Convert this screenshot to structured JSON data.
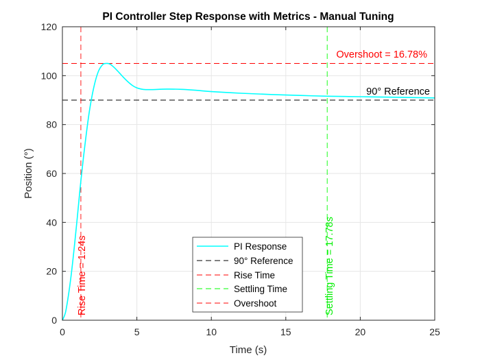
{
  "chart_data": {
    "type": "line",
    "title": "PI Controller Step Response with Metrics - Manual Tuning",
    "xlabel": "Time (s)",
    "ylabel": "Position (°)",
    "xlim": [
      0,
      25
    ],
    "ylim": [
      0,
      120
    ],
    "xticks": [
      "0",
      "5",
      "10",
      "15",
      "20",
      "25"
    ],
    "yticks": [
      "0",
      "20",
      "40",
      "60",
      "80",
      "100",
      "120"
    ],
    "grid": true,
    "legend_position": "bottom-center",
    "series": [
      {
        "name": "PI Response",
        "color": "#00ffff",
        "style": "solid",
        "x": [
          0,
          0.2,
          0.4,
          0.6,
          0.8,
          1.0,
          1.24,
          1.5,
          1.8,
          2.1,
          2.4,
          2.7,
          2.95,
          3.2,
          3.5,
          3.8,
          4.1,
          4.4,
          4.7,
          5.0,
          5.3,
          5.6,
          6.0,
          7.0,
          8.0,
          9.0,
          10.0,
          12.0,
          14.0,
          16.0,
          17.78,
          20.0,
          22.0,
          25.0
        ],
        "y": [
          0,
          3,
          10,
          19,
          30,
          42,
          57,
          71,
          85,
          95,
          101.5,
          104.5,
          105,
          104.7,
          103.2,
          101.3,
          99.3,
          97.5,
          96,
          95,
          94.5,
          94.3,
          94.3,
          94.5,
          94.4,
          94,
          93.5,
          92.8,
          92.3,
          91.9,
          91.6,
          91.4,
          91.2,
          90.9
        ]
      },
      {
        "name": "90° Reference",
        "color": "#000000",
        "style": "dashed",
        "y_constant": 90
      },
      {
        "name": "Rise Time",
        "color": "#ff0000",
        "style": "dashed",
        "x_constant": 1.24
      },
      {
        "name": "Settling Time",
        "color": "#00ff00",
        "style": "dashed",
        "x_constant": 17.78
      },
      {
        "name": "Overshoot",
        "color": "#ff0000",
        "style": "dashed",
        "y_constant": 105
      }
    ],
    "annotations": {
      "rise_time": "Rise Time = 1.24s",
      "settling_time": "Settling Time = 17.78s",
      "overshoot": "Overshoot = 16.78%",
      "reference": "90° Reference"
    }
  }
}
